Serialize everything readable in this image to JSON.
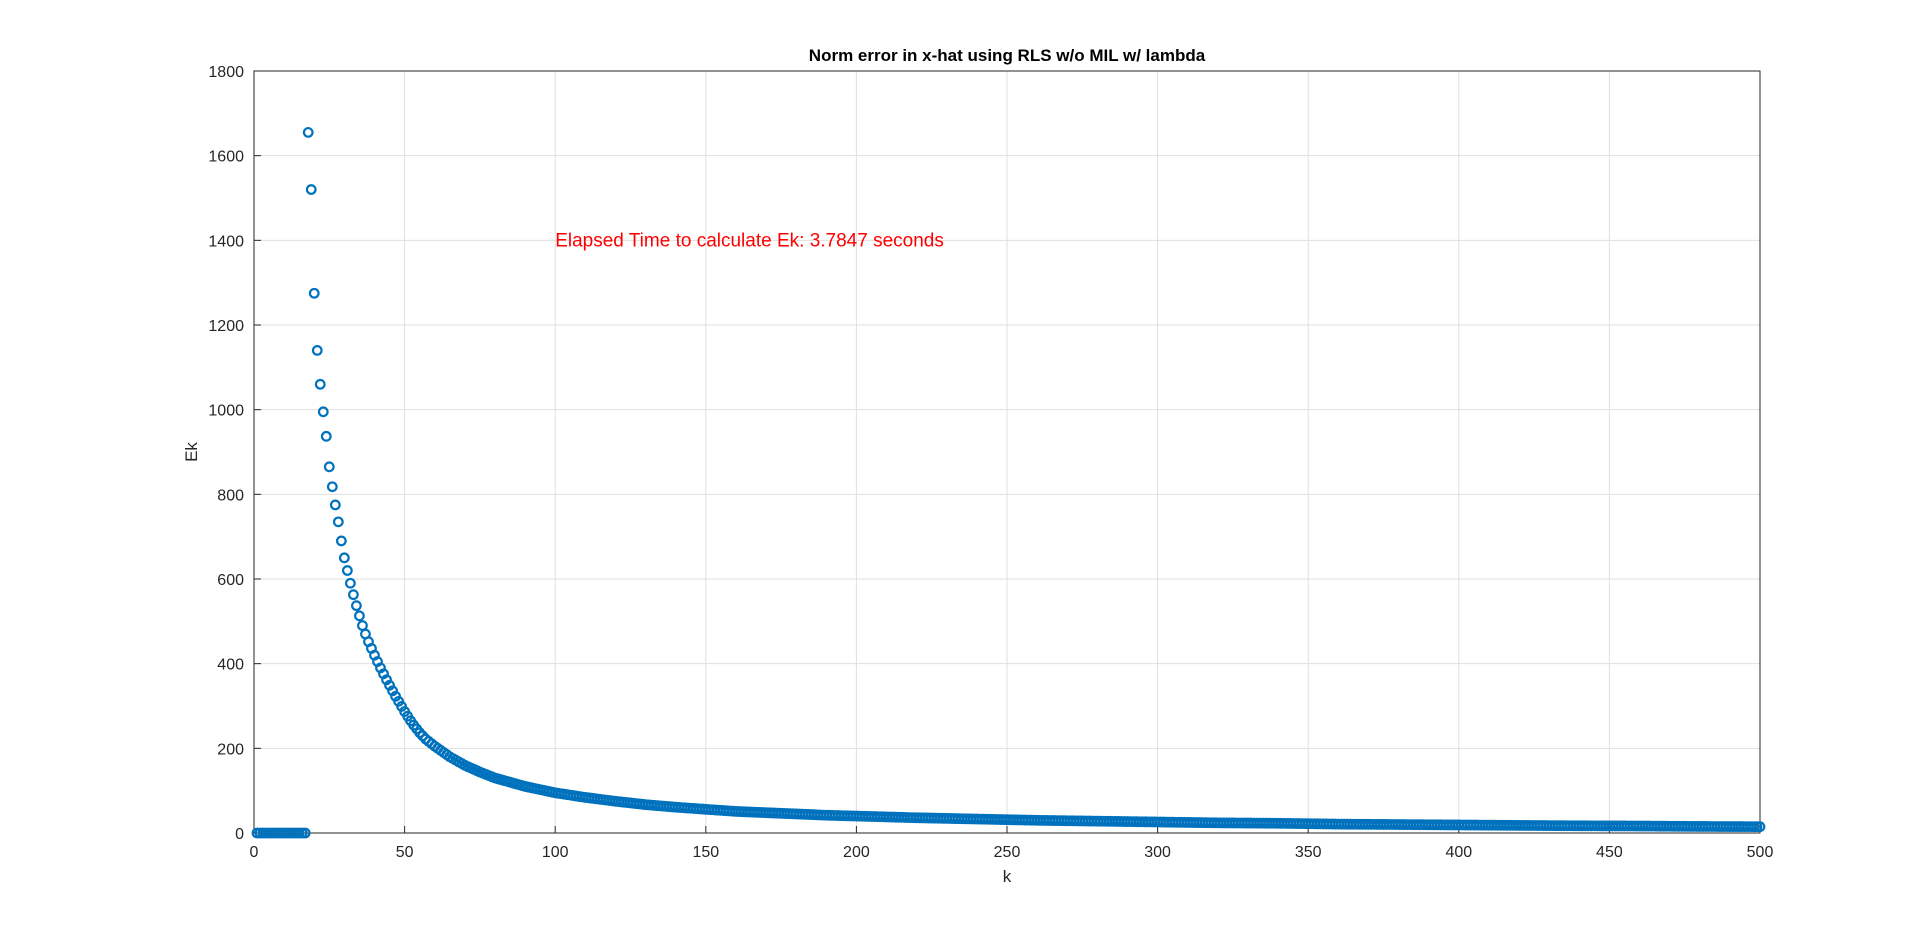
{
  "chart_data": {
    "type": "scatter",
    "title": "Norm error in x-hat using RLS w/o MIL w/ lambda",
    "xlabel": "k",
    "ylabel": "Ek",
    "xlim": [
      0,
      500
    ],
    "ylim": [
      0,
      1800
    ],
    "x_ticks": [
      0,
      50,
      100,
      150,
      200,
      250,
      300,
      350,
      400,
      450,
      500
    ],
    "y_ticks": [
      0,
      200,
      400,
      600,
      800,
      1000,
      1200,
      1400,
      1600,
      1800
    ],
    "x_tick_labels": [
      "0",
      "50",
      "100",
      "150",
      "200",
      "250",
      "300",
      "350",
      "400",
      "450",
      "500"
    ],
    "y_tick_labels": [
      "0",
      "200",
      "400",
      "600",
      "800",
      "1000",
      "1200",
      "1400",
      "1600",
      "1800"
    ],
    "grid": true,
    "marker": "circle-open",
    "series_color": "#0072BD",
    "annotation": {
      "text": "Elapsed Time to calculate Ek: 3.7847 seconds",
      "x": 100,
      "y": 1400,
      "color": "#FF0000"
    },
    "series": [
      {
        "points": [
          [
            1,
            0
          ],
          [
            2,
            0
          ],
          [
            3,
            0
          ],
          [
            4,
            0
          ],
          [
            5,
            0
          ],
          [
            6,
            0
          ],
          [
            7,
            0
          ],
          [
            8,
            0
          ],
          [
            9,
            0
          ],
          [
            10,
            0
          ],
          [
            11,
            0
          ],
          [
            12,
            0
          ],
          [
            13,
            0
          ],
          [
            14,
            0
          ],
          [
            15,
            0
          ],
          [
            16,
            0
          ],
          [
            17,
            0
          ],
          [
            18,
            1655
          ],
          [
            19,
            1520
          ],
          [
            20,
            1275
          ],
          [
            21,
            1140
          ],
          [
            22,
            1060
          ],
          [
            23,
            995
          ],
          [
            24,
            937
          ],
          [
            25,
            865
          ],
          [
            26,
            818
          ],
          [
            27,
            775
          ],
          [
            28,
            735
          ],
          [
            29,
            690
          ],
          [
            30,
            650
          ],
          [
            31,
            620
          ],
          [
            32,
            590
          ],
          [
            33,
            563
          ],
          [
            34,
            537
          ],
          [
            35,
            513
          ],
          [
            36,
            490
          ],
          [
            37,
            470
          ],
          [
            38,
            452
          ],
          [
            39,
            436
          ],
          [
            40,
            420
          ],
          [
            41,
            405
          ],
          [
            42,
            390
          ],
          [
            43,
            376
          ],
          [
            44,
            362
          ],
          [
            45,
            349
          ],
          [
            46,
            336
          ],
          [
            47,
            323
          ],
          [
            48,
            311
          ],
          [
            49,
            299
          ],
          [
            50,
            287
          ],
          [
            51,
            276
          ],
          [
            52,
            265
          ],
          [
            53,
            255
          ],
          [
            54,
            246
          ],
          [
            55,
            237
          ],
          [
            57,
            222
          ],
          [
            60,
            205
          ],
          [
            65,
            180
          ],
          [
            70,
            160
          ],
          [
            75,
            144
          ],
          [
            80,
            130
          ],
          [
            90,
            110
          ],
          [
            100,
            95
          ],
          [
            110,
            84
          ],
          [
            120,
            75
          ],
          [
            130,
            67
          ],
          [
            140,
            61
          ],
          [
            150,
            56
          ],
          [
            160,
            51
          ],
          [
            170,
            48
          ],
          [
            180,
            45
          ],
          [
            190,
            42
          ],
          [
            200,
            40
          ],
          [
            220,
            36
          ],
          [
            240,
            33
          ],
          [
            260,
            30
          ],
          [
            280,
            28
          ],
          [
            300,
            26
          ],
          [
            320,
            24
          ],
          [
            340,
            23
          ],
          [
            360,
            21
          ],
          [
            380,
            20
          ],
          [
            400,
            19
          ],
          [
            420,
            18
          ],
          [
            440,
            17
          ],
          [
            460,
            16.5
          ],
          [
            480,
            15.5
          ],
          [
            500,
            15
          ]
        ]
      }
    ]
  }
}
